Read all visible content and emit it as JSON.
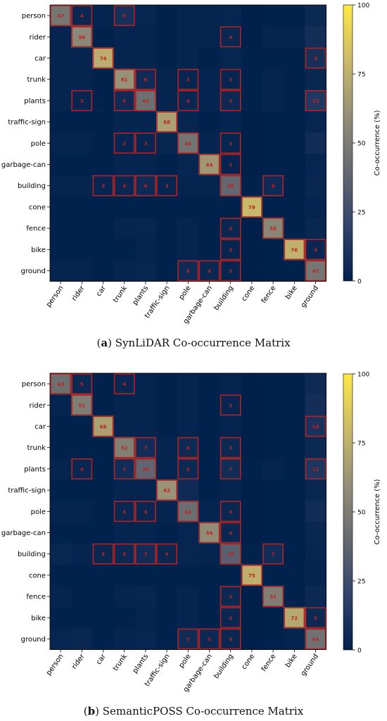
{
  "colors": {
    "colormap": [
      "#00204c",
      "#31446b",
      "#666970",
      "#958f78",
      "#cbba69",
      "#ffe945"
    ],
    "highlight": "#b22222",
    "value_text": "#c02020"
  },
  "chart_data": [
    {
      "type": "heatmap",
      "categories": [
        "person",
        "rider",
        "car",
        "trunk",
        "plants",
        "traffic-sign",
        "pole",
        "garbage-can",
        "building",
        "cone",
        "fence",
        "bike",
        "ground"
      ],
      "colorbar": {
        "label": "Co-occurrence (%)",
        "ticks": [
          0,
          25,
          50,
          75,
          100
        ],
        "range": [
          0,
          100
        ]
      },
      "matrix": [
        [
          47,
          4,
          2,
          9,
          3,
          1,
          2,
          2,
          3,
          0,
          1,
          1,
          5
        ],
        [
          2,
          56,
          1,
          2,
          2,
          1,
          2,
          2,
          4,
          0,
          2,
          2,
          8
        ],
        [
          2,
          2,
          74,
          2,
          2,
          1,
          2,
          1,
          3,
          1,
          1,
          1,
          9
        ],
        [
          2,
          2,
          1,
          61,
          6,
          2,
          3,
          2,
          3,
          1,
          2,
          1,
          4
        ],
        [
          2,
          3,
          1,
          6,
          43,
          2,
          4,
          2,
          5,
          1,
          2,
          1,
          13
        ],
        [
          1,
          1,
          1,
          2,
          2,
          68,
          3,
          1,
          2,
          0,
          1,
          1,
          3
        ],
        [
          2,
          2,
          1,
          3,
          3,
          3,
          46,
          2,
          3,
          0,
          1,
          1,
          7
        ],
        [
          1,
          1,
          1,
          2,
          2,
          1,
          3,
          64,
          2,
          0,
          1,
          1,
          3
        ],
        [
          2,
          2,
          3,
          4,
          6,
          3,
          2,
          2,
          39,
          1,
          6,
          1,
          4
        ],
        [
          1,
          1,
          1,
          1,
          1,
          1,
          1,
          1,
          1,
          79,
          1,
          1,
          2
        ],
        [
          1,
          1,
          1,
          2,
          3,
          1,
          2,
          1,
          4,
          0,
          55,
          1,
          4
        ],
        [
          1,
          1,
          1,
          1,
          2,
          1,
          2,
          1,
          3,
          0,
          1,
          76,
          4
        ],
        [
          2,
          2,
          1,
          2,
          3,
          1,
          6,
          4,
          3,
          0,
          1,
          1,
          47
        ]
      ],
      "annotated": [
        [
          0,
          0,
          47
        ],
        [
          0,
          1,
          4
        ],
        [
          0,
          3,
          9
        ],
        [
          1,
          1,
          56
        ],
        [
          1,
          8,
          4
        ],
        [
          2,
          2,
          74
        ],
        [
          2,
          12,
          9
        ],
        [
          3,
          3,
          61
        ],
        [
          3,
          4,
          6
        ],
        [
          3,
          6,
          3
        ],
        [
          3,
          8,
          3
        ],
        [
          4,
          1,
          3
        ],
        [
          4,
          3,
          6
        ],
        [
          4,
          4,
          43
        ],
        [
          4,
          6,
          4
        ],
        [
          4,
          8,
          5
        ],
        [
          4,
          12,
          13
        ],
        [
          5,
          5,
          68
        ],
        [
          6,
          3,
          3
        ],
        [
          6,
          4,
          3
        ],
        [
          6,
          6,
          46
        ],
        [
          6,
          8,
          3
        ],
        [
          7,
          7,
          64
        ],
        [
          7,
          8,
          2
        ],
        [
          8,
          2,
          3
        ],
        [
          8,
          3,
          4
        ],
        [
          8,
          4,
          6
        ],
        [
          8,
          5,
          3
        ],
        [
          8,
          8,
          39
        ],
        [
          8,
          10,
          6
        ],
        [
          9,
          9,
          79
        ],
        [
          10,
          8,
          4
        ],
        [
          10,
          10,
          55
        ],
        [
          11,
          8,
          3
        ],
        [
          11,
          11,
          76
        ],
        [
          11,
          12,
          4
        ],
        [
          12,
          6,
          6
        ],
        [
          12,
          7,
          4
        ],
        [
          12,
          8,
          3
        ],
        [
          12,
          12,
          47
        ]
      ]
    },
    {
      "type": "heatmap",
      "categories": [
        "person",
        "rider",
        "car",
        "trunk",
        "plants",
        "traffic-sign",
        "pole",
        "garbage-can",
        "building",
        "cone",
        "fence",
        "bike",
        "ground"
      ],
      "colorbar": {
        "label": "Co-occurrence (%)",
        "ticks": [
          0,
          25,
          50,
          75,
          100
        ],
        "range": [
          0,
          100
        ]
      },
      "matrix": [
        [
          43,
          5,
          1,
          4,
          2,
          1,
          2,
          1,
          2,
          0,
          1,
          1,
          6
        ],
        [
          2,
          51,
          1,
          2,
          2,
          1,
          2,
          1,
          3,
          0,
          1,
          1,
          8
        ],
        [
          1,
          1,
          68,
          2,
          2,
          1,
          2,
          1,
          2,
          0,
          1,
          1,
          10
        ],
        [
          1,
          1,
          1,
          52,
          7,
          2,
          6,
          1,
          5,
          0,
          1,
          1,
          5
        ],
        [
          2,
          4,
          1,
          7,
          38,
          2,
          5,
          1,
          7,
          1,
          2,
          1,
          12
        ],
        [
          1,
          1,
          1,
          2,
          2,
          62,
          6,
          1,
          2,
          0,
          1,
          1,
          4
        ],
        [
          2,
          2,
          1,
          4,
          4,
          2,
          42,
          2,
          4,
          0,
          1,
          1,
          7
        ],
        [
          1,
          1,
          1,
          2,
          2,
          1,
          3,
          59,
          4,
          0,
          1,
          1,
          4
        ],
        [
          4,
          2,
          4,
          5,
          7,
          4,
          3,
          2,
          35,
          1,
          7,
          1,
          3
        ],
        [
          1,
          1,
          1,
          1,
          1,
          1,
          1,
          1,
          1,
          75,
          1,
          1,
          2
        ],
        [
          2,
          1,
          1,
          2,
          3,
          1,
          2,
          1,
          5,
          0,
          51,
          1,
          5
        ],
        [
          1,
          1,
          1,
          1,
          2,
          1,
          2,
          1,
          4,
          0,
          1,
          72,
          5
        ],
        [
          3,
          4,
          1,
          2,
          3,
          1,
          7,
          5,
          4,
          0,
          1,
          2,
          44
        ]
      ],
      "annotated": [
        [
          0,
          0,
          43
        ],
        [
          0,
          1,
          5
        ],
        [
          0,
          3,
          4
        ],
        [
          1,
          1,
          51
        ],
        [
          1,
          8,
          3
        ],
        [
          2,
          2,
          68
        ],
        [
          2,
          12,
          10
        ],
        [
          3,
          3,
          52
        ],
        [
          3,
          4,
          7
        ],
        [
          3,
          6,
          6
        ],
        [
          3,
          8,
          5
        ],
        [
          4,
          1,
          4
        ],
        [
          4,
          3,
          7
        ],
        [
          4,
          4,
          38
        ],
        [
          4,
          6,
          5
        ],
        [
          4,
          8,
          7
        ],
        [
          4,
          12,
          12
        ],
        [
          5,
          5,
          62
        ],
        [
          6,
          3,
          4
        ],
        [
          6,
          4,
          4
        ],
        [
          6,
          6,
          42
        ],
        [
          6,
          8,
          4
        ],
        [
          7,
          7,
          59
        ],
        [
          7,
          8,
          4
        ],
        [
          8,
          2,
          4
        ],
        [
          8,
          3,
          5
        ],
        [
          8,
          4,
          7
        ],
        [
          8,
          5,
          4
        ],
        [
          8,
          8,
          35
        ],
        [
          8,
          10,
          7
        ],
        [
          9,
          9,
          75
        ],
        [
          10,
          8,
          5
        ],
        [
          10,
          10,
          51
        ],
        [
          11,
          8,
          4
        ],
        [
          11,
          11,
          72
        ],
        [
          11,
          12,
          5
        ],
        [
          12,
          6,
          7
        ],
        [
          12,
          7,
          5
        ],
        [
          12,
          8,
          4
        ],
        [
          12,
          12,
          44
        ]
      ]
    }
  ],
  "captions": [
    {
      "letter": "a",
      "text": " SynLiDAR Co-occurrence Matrix"
    },
    {
      "letter": "b",
      "text": " SemanticPOSS Co-occurrence Matrix"
    }
  ]
}
